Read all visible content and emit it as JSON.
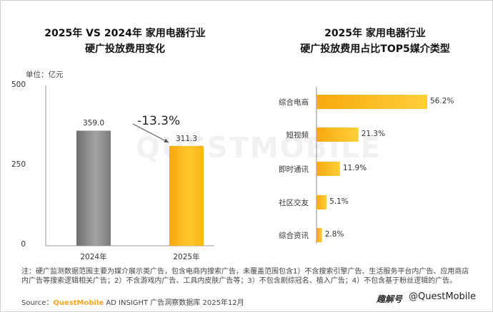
{
  "watermark": "QUESTMOBILE",
  "left_chart_title": [
    "2025年 VS 2024年 家用电器行业",
    "硬广投放费用变化"
  ],
  "right_chart_title": [
    "2025年 家用电器行业",
    "硬广投放费用占比TOP5媒介类型"
  ],
  "unit_label": "单位：亿元",
  "change_label": "-13.3%",
  "note": "注：硬广监测数据范围主要为媒介展示类广告，包含电商内搜索广告，未覆盖范围包含1）不含搜索引擎广告、生活服务平台内广告、应用商店内广告等搜索逻辑相关广告；2）不含游戏内广告、工具内皮肤广告等；3）不包含剧综冠名、植入广告；4）不包含基于粉丝逻辑的广告。",
  "source_prefix": "Source：",
  "source_brand": "QuestMobile",
  "source_rest": " AD INSIGHT 广告洞察数据库 2025年12月",
  "footer_logo": "趣解号",
  "footer_handle": "@QuestMobile",
  "colors": {
    "bar_2024": "#8c8c8c",
    "bar_2025": "#f6b21b",
    "accent": "#f5a623"
  },
  "chart_data": [
    {
      "type": "bar",
      "categories": [
        "2024年",
        "2025年"
      ],
      "values": [
        359.0,
        311.3
      ],
      "value_labels": [
        "359.0",
        "311.3"
      ],
      "ylim": [
        0,
        500
      ],
      "yticks": [
        "0",
        "250",
        "500"
      ],
      "grid": false
    },
    {
      "type": "bar",
      "orientation": "horizontal",
      "categories": [
        "综合电商",
        "短视频",
        "即时通讯",
        "社区交友",
        "综合资讯"
      ],
      "values": [
        56.2,
        21.3,
        11.9,
        5.1,
        2.8
      ],
      "value_labels": [
        "56.2%",
        "21.3%",
        "11.9%",
        "5.1%",
        "2.8%"
      ],
      "grid": false
    }
  ]
}
